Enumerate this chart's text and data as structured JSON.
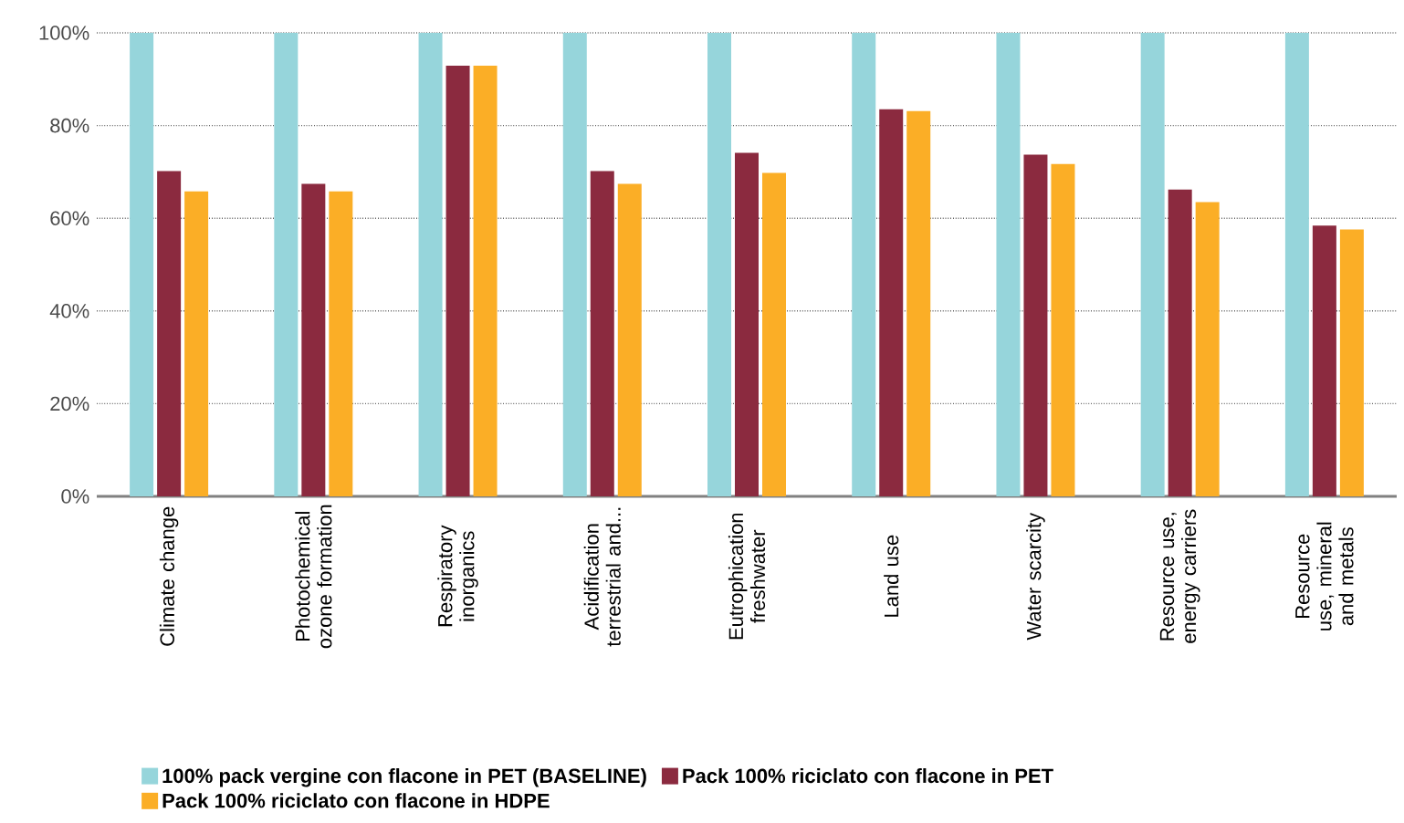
{
  "chart_data": {
    "type": "bar",
    "categories": [
      "Climate change",
      "Photochemical ozone formation",
      "Respiratory inorganics",
      "Acidification terrestrial and...",
      "Eutrophication freshwater",
      "Land use",
      "Water scarcity",
      "Resource use, energy carriers",
      "Resource use, mineral and metals"
    ],
    "series": [
      {
        "name": "100% pack vergine con flacone in PET (BASELINE)",
        "color": "#96d5db",
        "values": [
          100,
          100,
          100,
          100,
          100,
          100,
          100,
          100,
          100
        ]
      },
      {
        "name": "Pack 100% riciclato con flacone in PET",
        "color": "#8b2a3f",
        "values": [
          70.2,
          67.4,
          92.9,
          70.2,
          74.1,
          83.5,
          73.7,
          66.2,
          58.4
        ]
      },
      {
        "name": "Pack 100% riciclato con flacone in HDPE",
        "color": "#fbae26",
        "values": [
          65.8,
          65.8,
          92.9,
          67.4,
          69.8,
          83.1,
          71.7,
          63.5,
          57.6
        ]
      }
    ],
    "ylim": [
      0,
      100
    ],
    "yticks": [
      {
        "value": 0,
        "label": "0%"
      },
      {
        "value": 20,
        "label": "20%"
      },
      {
        "value": 40,
        "label": "40%"
      },
      {
        "value": 60,
        "label": "60%"
      },
      {
        "value": 80,
        "label": "80%"
      },
      {
        "value": 100,
        "label": "100%"
      }
    ],
    "grid": "y",
    "legend": "bottom"
  }
}
